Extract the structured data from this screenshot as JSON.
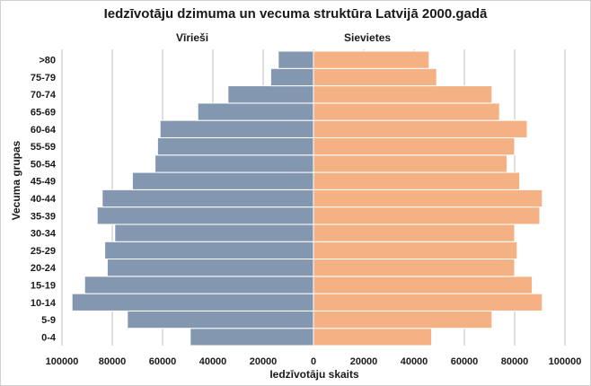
{
  "chart_data": {
    "type": "bar",
    "title": "Iedzīvotāju dzimuma un vecuma struktūra Latvijā 2000.gadā",
    "xlabel": "Iedzīvotāju skaits",
    "ylabel": "Vecuma grupas",
    "categories": [
      "0-4",
      "5-9",
      "10-14",
      "15-19",
      "20-24",
      "25-29",
      "30-34",
      "35-39",
      "40-44",
      "45-49",
      "50-54",
      "55-59",
      "60-64",
      "65-69",
      "70-74",
      "75-79",
      ">80"
    ],
    "series": [
      {
        "name": "Vīrieši",
        "values": [
          49000,
          74000,
          96000,
          91000,
          82000,
          83000,
          79000,
          86000,
          84000,
          72000,
          63000,
          62000,
          61000,
          46000,
          34000,
          17000,
          14000
        ]
      },
      {
        "name": "Sievietes",
        "values": [
          47000,
          71000,
          91000,
          87000,
          80000,
          81000,
          80000,
          90000,
          91000,
          82000,
          77000,
          80000,
          85000,
          74000,
          71000,
          49000,
          46000
        ]
      }
    ],
    "xlim": [
      -100000,
      100000
    ],
    "xticks": [
      "100000",
      "80000",
      "60000",
      "40000",
      "20000",
      "0",
      "20000",
      "40000",
      "60000",
      "80000",
      "100000"
    ],
    "colors": {
      "male": "#8497b0",
      "female": "#f4b183",
      "grid": "#bfbfbf"
    },
    "grid": true,
    "legend": "series labels above bars"
  }
}
